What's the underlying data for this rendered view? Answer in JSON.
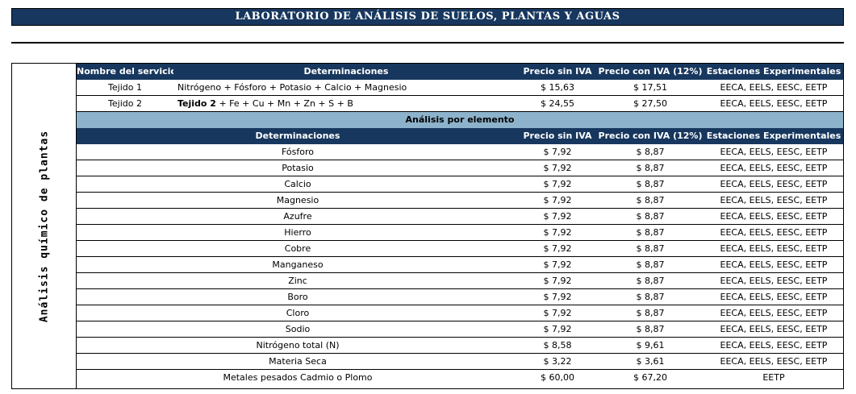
{
  "title": "LABORATORIO DE ANÁLISIS DE SUELOS, PLANTAS Y AGUAS",
  "side_label": "Análisis químico de plantas",
  "header": {
    "service": "Nombre del servicio",
    "determinations": "Determinaciones",
    "price_no_vat": "Precio sin IVA",
    "price_vat": "Precio con IVA (12%)",
    "stations": "Estaciones Experimentales"
  },
  "services": [
    {
      "name": "Tejido 1",
      "det_bold": "",
      "det": "Nitrógeno + Fósforo + Potasio + Calcio + Magnesio",
      "price": "$ 15,63",
      "price_vat": "$ 17,51",
      "stations": "EECA, EELS, EESC, EETP"
    },
    {
      "name": "Tejido 2",
      "det_bold": "Tejido 2",
      "det": " + Fe + Cu + Mn + Zn + S + B",
      "price": "$ 24,55",
      "price_vat": "$ 27,50",
      "stations": "EECA, EELS, EESC, EETP"
    }
  ],
  "section_title": "Análisis por elemento",
  "header2": {
    "determinations": "Determinaciones",
    "price_no_vat": "Precio sin IVA",
    "price_vat": "Precio con IVA (12%)",
    "stations": "Estaciones Experimentales"
  },
  "elements": [
    {
      "name": "Fósforo",
      "price": "$ 7,92",
      "price_vat": "$ 8,87",
      "stations": "EECA, EELS, EESC, EETP"
    },
    {
      "name": "Potasio",
      "price": "$ 7,92",
      "price_vat": "$ 8,87",
      "stations": "EECA, EELS, EESC, EETP"
    },
    {
      "name": "Calcio",
      "price": "$ 7,92",
      "price_vat": "$ 8,87",
      "stations": "EECA, EELS, EESC, EETP"
    },
    {
      "name": "Magnesio",
      "price": "$ 7,92",
      "price_vat": "$ 8,87",
      "stations": "EECA, EELS, EESC, EETP"
    },
    {
      "name": "Azufre",
      "price": "$ 7,92",
      "price_vat": "$ 8,87",
      "stations": "EECA, EELS, EESC, EETP"
    },
    {
      "name": "Hierro",
      "price": "$ 7,92",
      "price_vat": "$ 8,87",
      "stations": "EECA, EELS, EESC, EETP"
    },
    {
      "name": "Cobre",
      "price": "$ 7,92",
      "price_vat": "$ 8,87",
      "stations": "EECA, EELS, EESC, EETP"
    },
    {
      "name": "Manganeso",
      "price": "$ 7,92",
      "price_vat": "$ 8,87",
      "stations": "EECA, EELS, EESC, EETP"
    },
    {
      "name": "Zinc",
      "price": "$ 7,92",
      "price_vat": "$ 8,87",
      "stations": "EECA, EELS, EESC, EETP"
    },
    {
      "name": "Boro",
      "price": "$ 7,92",
      "price_vat": "$ 8,87",
      "stations": "EECA, EELS, EESC, EETP"
    },
    {
      "name": "Cloro",
      "price": "$ 7,92",
      "price_vat": "$ 8,87",
      "stations": "EECA, EELS, EESC, EETP"
    },
    {
      "name": "Sodio",
      "price": "$ 7,92",
      "price_vat": "$ 8,87",
      "stations": "EECA, EELS, EESC, EETP"
    },
    {
      "name": "Nitrógeno total (N)",
      "price": "$ 8,58",
      "price_vat": "$ 9,61",
      "stations": "EECA, EELS, EESC, EETP"
    },
    {
      "name": "Materia Seca",
      "price": "$ 3,22",
      "price_vat": "$ 3,61",
      "stations": "EECA, EELS, EESC, EETP"
    },
    {
      "name": "Metales pesados Cadmio o Plomo",
      "price": "$ 60,00",
      "price_vat": "$ 67,20",
      "stations": "EETP"
    }
  ],
  "colors": {
    "header_bg": "#17375e",
    "section_bg": "#8db3cc"
  }
}
